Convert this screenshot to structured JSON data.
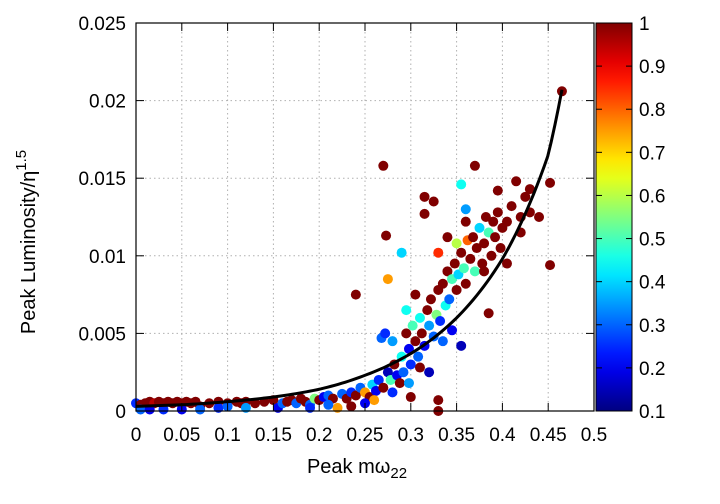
{
  "chart_data": {
    "type": "scatter",
    "title": "",
    "xlabel": "Peak mω",
    "xlabel_sub": "22",
    "ylabel": "Peak Luminosity/η",
    "ylabel_sup": "1.5",
    "xlim": [
      0,
      0.5
    ],
    "ylim": [
      0,
      0.025
    ],
    "grid": true,
    "x_ticks": [
      0,
      0.05,
      0.1,
      0.15,
      0.2,
      0.25,
      0.3,
      0.35,
      0.4,
      0.45,
      0.5
    ],
    "x_tick_labels": [
      "0",
      "0.05",
      "0.1",
      "0.15",
      "0.2",
      "0.25",
      "0.3",
      "0.35",
      "0.4",
      "0.45",
      "0.5"
    ],
    "y_ticks": [
      0,
      0.005,
      0.01,
      0.015,
      0.02,
      0.025
    ],
    "y_tick_labels": [
      "0",
      "0.005",
      "0.01",
      "0.015",
      "0.02",
      "0.025"
    ],
    "colorbar": {
      "colormap": "jet",
      "range": [
        0.1,
        1
      ],
      "ticks": [
        0.1,
        0.2,
        0.3,
        0.4,
        0.5,
        0.6,
        0.7,
        0.8,
        0.9,
        1
      ],
      "tick_labels": [
        "0.1",
        "0.2",
        "0.3",
        "0.4",
        "0.5",
        "0.6",
        "0.7",
        "0.8",
        "0.9",
        "1"
      ]
    },
    "fit_curve": {
      "color": "#000000",
      "x": [
        0.0,
        0.05,
        0.1,
        0.15,
        0.2,
        0.25,
        0.3,
        0.35,
        0.4,
        0.45,
        0.465
      ],
      "y": [
        0.0003,
        0.0004,
        0.0006,
        0.0009,
        0.0014,
        0.0023,
        0.0037,
        0.006,
        0.0098,
        0.0165,
        0.0207
      ]
    },
    "points": [
      {
        "x": 0.0,
        "y": 0.0005,
        "c": 0.25
      },
      {
        "x": 0.005,
        "y": 0.0004,
        "c": 1
      },
      {
        "x": 0.01,
        "y": 0.0005,
        "c": 1
      },
      {
        "x": 0.015,
        "y": 0.0006,
        "c": 1
      },
      {
        "x": 0.02,
        "y": 0.0005,
        "c": 0.95
      },
      {
        "x": 0.025,
        "y": 0.0006,
        "c": 1
      },
      {
        "x": 0.03,
        "y": 0.0005,
        "c": 1
      },
      {
        "x": 0.035,
        "y": 0.0006,
        "c": 1
      },
      {
        "x": 0.04,
        "y": 0.0005,
        "c": 1
      },
      {
        "x": 0.045,
        "y": 0.0006,
        "c": 1
      },
      {
        "x": 0.05,
        "y": 0.0005,
        "c": 1
      },
      {
        "x": 0.055,
        "y": 0.0006,
        "c": 1
      },
      {
        "x": 0.06,
        "y": 0.0005,
        "c": 1
      },
      {
        "x": 0.065,
        "y": 0.0006,
        "c": 1
      },
      {
        "x": 0.07,
        "y": 0.0003,
        "c": 1
      },
      {
        "x": 0.08,
        "y": 0.0005,
        "c": 1
      },
      {
        "x": 0.09,
        "y": 0.0006,
        "c": 1
      },
      {
        "x": 0.1,
        "y": 0.0005,
        "c": 1
      },
      {
        "x": 0.11,
        "y": 0.0006,
        "c": 1
      },
      {
        "x": 0.115,
        "y": 0.0005,
        "c": 1
      },
      {
        "x": 0.12,
        "y": 0.0006,
        "c": 1
      },
      {
        "x": 0.13,
        "y": 0.0005,
        "c": 1
      },
      {
        "x": 0.14,
        "y": 0.0006,
        "c": 1
      },
      {
        "x": 0.15,
        "y": 0.0007,
        "c": 1
      },
      {
        "x": 0.005,
        "y": 0.0001,
        "c": 0.3
      },
      {
        "x": 0.015,
        "y": 0.0001,
        "c": 0.2
      },
      {
        "x": 0.03,
        "y": 0.0001,
        "c": 0.25
      },
      {
        "x": 0.05,
        "y": 0.0001,
        "c": 0.2
      },
      {
        "x": 0.07,
        "y": 0.0001,
        "c": 0.3
      },
      {
        "x": 0.09,
        "y": 0.0002,
        "c": 0.25
      },
      {
        "x": 0.1,
        "y": 0.0003,
        "c": 0.3
      },
      {
        "x": 0.12,
        "y": 0.0002,
        "c": 0.35
      },
      {
        "x": 0.155,
        "y": 0.0002,
        "c": 0.2
      },
      {
        "x": 0.16,
        "y": 0.0005,
        "c": 0.3
      },
      {
        "x": 0.165,
        "y": 0.0006,
        "c": 1
      },
      {
        "x": 0.17,
        "y": 0.0007,
        "c": 1
      },
      {
        "x": 0.175,
        "y": 0.0005,
        "c": 0.3
      },
      {
        "x": 0.18,
        "y": 0.0008,
        "c": 1
      },
      {
        "x": 0.185,
        "y": 0.0006,
        "c": 1
      },
      {
        "x": 0.19,
        "y": 0.0004,
        "c": 0.3
      },
      {
        "x": 0.195,
        "y": 0.0008,
        "c": 0.55
      },
      {
        "x": 0.2,
        "y": 0.0007,
        "c": 1
      },
      {
        "x": 0.205,
        "y": 0.0009,
        "c": 0.2
      },
      {
        "x": 0.21,
        "y": 0.001,
        "c": 0.3
      },
      {
        "x": 0.215,
        "y": 0.0008,
        "c": 1
      },
      {
        "x": 0.22,
        "y": 0.0002,
        "c": 0.75
      },
      {
        "x": 0.225,
        "y": 0.0011,
        "c": 0.3
      },
      {
        "x": 0.23,
        "y": 0.0008,
        "c": 1
      },
      {
        "x": 0.235,
        "y": 0.0012,
        "c": 0.25
      },
      {
        "x": 0.24,
        "y": 0.001,
        "c": 1
      },
      {
        "x": 0.245,
        "y": 0.0015,
        "c": 0.3
      },
      {
        "x": 0.25,
        "y": 0.0012,
        "c": 0.75
      },
      {
        "x": 0.255,
        "y": 0.0009,
        "c": 1
      },
      {
        "x": 0.258,
        "y": 0.0017,
        "c": 0.4
      },
      {
        "x": 0.262,
        "y": 0.0013,
        "c": 0.2
      },
      {
        "x": 0.265,
        "y": 0.002,
        "c": 0.25
      },
      {
        "x": 0.268,
        "y": 0.0047,
        "c": 0.3
      },
      {
        "x": 0.27,
        "y": 0.0015,
        "c": 1
      },
      {
        "x": 0.272,
        "y": 0.005,
        "c": 0.25
      },
      {
        "x": 0.275,
        "y": 0.0025,
        "c": 0.15
      },
      {
        "x": 0.278,
        "y": 0.002,
        "c": 0.5
      },
      {
        "x": 0.28,
        "y": 0.0045,
        "c": 0.35
      },
      {
        "x": 0.282,
        "y": 0.003,
        "c": 1
      },
      {
        "x": 0.285,
        "y": 0.0023,
        "c": 0.2
      },
      {
        "x": 0.288,
        "y": 0.0018,
        "c": 1
      },
      {
        "x": 0.29,
        "y": 0.0035,
        "c": 0.45
      },
      {
        "x": 0.292,
        "y": 0.0025,
        "c": 0.3
      },
      {
        "x": 0.295,
        "y": 0.005,
        "c": 1
      },
      {
        "x": 0.298,
        "y": 0.004,
        "c": 0.2
      },
      {
        "x": 0.3,
        "y": 0.003,
        "c": 0.25
      },
      {
        "x": 0.302,
        "y": 0.0055,
        "c": 0.5
      },
      {
        "x": 0.305,
        "y": 0.0045,
        "c": 1
      },
      {
        "x": 0.308,
        "y": 0.0035,
        "c": 0.3
      },
      {
        "x": 0.31,
        "y": 0.006,
        "c": 0.45
      },
      {
        "x": 0.312,
        "y": 0.005,
        "c": 1
      },
      {
        "x": 0.315,
        "y": 0.0042,
        "c": 0.2
      },
      {
        "x": 0.318,
        "y": 0.0065,
        "c": 1
      },
      {
        "x": 0.32,
        "y": 0.0055,
        "c": 0.35
      },
      {
        "x": 0.322,
        "y": 0.0072,
        "c": 1
      },
      {
        "x": 0.325,
        "y": 0.0048,
        "c": 0.3
      },
      {
        "x": 0.328,
        "y": 0.0062,
        "c": 0.55
      },
      {
        "x": 0.33,
        "y": 0.0078,
        "c": 1
      },
      {
        "x": 0.332,
        "y": 0.0058,
        "c": 0.25
      },
      {
        "x": 0.335,
        "y": 0.0082,
        "c": 1
      },
      {
        "x": 0.338,
        "y": 0.0068,
        "c": 0.45
      },
      {
        "x": 0.34,
        "y": 0.009,
        "c": 1
      },
      {
        "x": 0.342,
        "y": 0.0072,
        "c": 0.3
      },
      {
        "x": 0.345,
        "y": 0.0085,
        "c": 0.5
      },
      {
        "x": 0.348,
        "y": 0.0095,
        "c": 1
      },
      {
        "x": 0.35,
        "y": 0.0078,
        "c": 1
      },
      {
        "x": 0.352,
        "y": 0.0088,
        "c": 0.4
      },
      {
        "x": 0.355,
        "y": 0.0102,
        "c": 1
      },
      {
        "x": 0.358,
        "y": 0.0092,
        "c": 0.5
      },
      {
        "x": 0.36,
        "y": 0.0082,
        "c": 1
      },
      {
        "x": 0.362,
        "y": 0.011,
        "c": 0.8
      },
      {
        "x": 0.365,
        "y": 0.0098,
        "c": 1
      },
      {
        "x": 0.368,
        "y": 0.0112,
        "c": 1
      },
      {
        "x": 0.37,
        "y": 0.009,
        "c": 0.5
      },
      {
        "x": 0.372,
        "y": 0.0105,
        "c": 1
      },
      {
        "x": 0.375,
        "y": 0.0118,
        "c": 0.4
      },
      {
        "x": 0.378,
        "y": 0.0095,
        "c": 1
      },
      {
        "x": 0.38,
        "y": 0.0108,
        "c": 1
      },
      {
        "x": 0.382,
        "y": 0.0125,
        "c": 1
      },
      {
        "x": 0.385,
        "y": 0.0115,
        "c": 0.5
      },
      {
        "x": 0.388,
        "y": 0.01,
        "c": 1
      },
      {
        "x": 0.39,
        "y": 0.0122,
        "c": 1
      },
      {
        "x": 0.392,
        "y": 0.0112,
        "c": 1
      },
      {
        "x": 0.395,
        "y": 0.0128,
        "c": 1
      },
      {
        "x": 0.398,
        "y": 0.0105,
        "c": 1
      },
      {
        "x": 0.4,
        "y": 0.0118,
        "c": 1
      },
      {
        "x": 0.405,
        "y": 0.0122,
        "c": 1
      },
      {
        "x": 0.41,
        "y": 0.0132,
        "c": 1
      },
      {
        "x": 0.415,
        "y": 0.0148,
        "c": 1
      },
      {
        "x": 0.42,
        "y": 0.0125,
        "c": 1
      },
      {
        "x": 0.425,
        "y": 0.0138,
        "c": 1
      },
      {
        "x": 0.43,
        "y": 0.0143,
        "c": 1
      },
      {
        "x": 0.44,
        "y": 0.0125,
        "c": 1
      },
      {
        "x": 0.452,
        "y": 0.0147,
        "c": 1
      },
      {
        "x": 0.452,
        "y": 0.0094,
        "c": 1
      },
      {
        "x": 0.465,
        "y": 0.0206,
        "c": 1
      },
      {
        "x": 0.27,
        "y": 0.0158,
        "c": 1
      },
      {
        "x": 0.273,
        "y": 0.0113,
        "c": 1
      },
      {
        "x": 0.33,
        "y": 0.0,
        "c": 1
      },
      {
        "x": 0.33,
        "y": 0.0007,
        "c": 1
      },
      {
        "x": 0.24,
        "y": 0.0075,
        "c": 1
      },
      {
        "x": 0.315,
        "y": 0.0138,
        "c": 1
      },
      {
        "x": 0.315,
        "y": 0.0127,
        "c": 1
      },
      {
        "x": 0.33,
        "y": 0.0102,
        "c": 0.85
      },
      {
        "x": 0.355,
        "y": 0.0146,
        "c": 0.45
      },
      {
        "x": 0.37,
        "y": 0.0158,
        "c": 1
      },
      {
        "x": 0.29,
        "y": 0.0102,
        "c": 0.4
      },
      {
        "x": 0.275,
        "y": 0.0085,
        "c": 0.75
      },
      {
        "x": 0.325,
        "y": 0.0135,
        "c": 1
      },
      {
        "x": 0.36,
        "y": 0.013,
        "c": 0.35
      },
      {
        "x": 0.38,
        "y": 0.009,
        "c": 1
      },
      {
        "x": 0.385,
        "y": 0.0063,
        "c": 1
      },
      {
        "x": 0.355,
        "y": 0.0042,
        "c": 0.15
      },
      {
        "x": 0.345,
        "y": 0.0052,
        "c": 0.2
      },
      {
        "x": 0.335,
        "y": 0.0045,
        "c": 0.3
      },
      {
        "x": 0.31,
        "y": 0.0028,
        "c": 1
      },
      {
        "x": 0.32,
        "y": 0.0025,
        "c": 0.15
      },
      {
        "x": 0.298,
        "y": 0.0018,
        "c": 0.35
      },
      {
        "x": 0.28,
        "y": 0.0012,
        "c": 0.25
      },
      {
        "x": 0.26,
        "y": 0.0007,
        "c": 0.75
      },
      {
        "x": 0.25,
        "y": 0.0005,
        "c": 0.2
      },
      {
        "x": 0.235,
        "y": 0.0003,
        "c": 1
      },
      {
        "x": 0.21,
        "y": 0.0004,
        "c": 0.3
      },
      {
        "x": 0.19,
        "y": 0.0002,
        "c": 0.25
      },
      {
        "x": 0.3,
        "y": 0.0009,
        "c": 1
      },
      {
        "x": 0.295,
        "y": 0.0065,
        "c": 0.45
      },
      {
        "x": 0.305,
        "y": 0.0075,
        "c": 1
      },
      {
        "x": 0.34,
        "y": 0.0112,
        "c": 1
      },
      {
        "x": 0.35,
        "y": 0.0108,
        "c": 0.6
      },
      {
        "x": 0.36,
        "y": 0.0122,
        "c": 1
      },
      {
        "x": 0.395,
        "y": 0.0142,
        "c": 1
      },
      {
        "x": 0.405,
        "y": 0.0095,
        "c": 1
      },
      {
        "x": 0.42,
        "y": 0.0115,
        "c": 1
      },
      {
        "x": 0.43,
        "y": 0.0128,
        "c": 1
      }
    ]
  }
}
